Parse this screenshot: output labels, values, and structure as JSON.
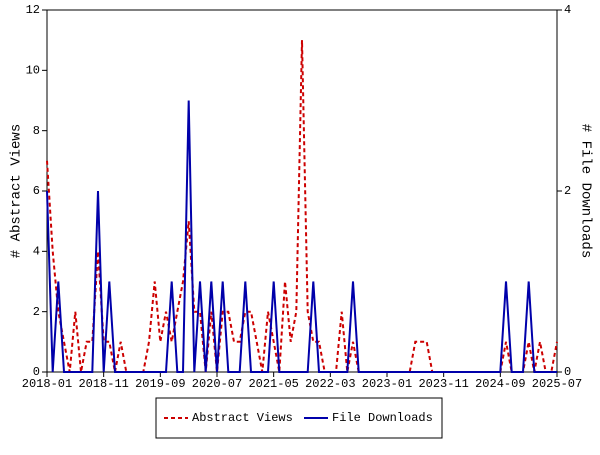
{
  "chart_data": {
    "type": "line",
    "categories": [
      "2018-01",
      null,
      null,
      null,
      null,
      null,
      null,
      null,
      null,
      null,
      "2018-11",
      null,
      null,
      null,
      null,
      null,
      null,
      null,
      null,
      null,
      "2019-09",
      null,
      null,
      null,
      null,
      null,
      null,
      null,
      null,
      null,
      "2020-07",
      null,
      null,
      null,
      null,
      null,
      null,
      null,
      null,
      null,
      "2021-05",
      null,
      null,
      null,
      null,
      null,
      null,
      null,
      null,
      null,
      "2022-03",
      null,
      null,
      null,
      null,
      null,
      null,
      null,
      null,
      null,
      "2023-01",
      null,
      null,
      null,
      null,
      null,
      null,
      null,
      null,
      null,
      "2023-11",
      null,
      null,
      null,
      null,
      null,
      null,
      null,
      null,
      null,
      "2024-09",
      null,
      null,
      null,
      null,
      null,
      null,
      null,
      null,
      null,
      "2025-07"
    ],
    "y_label": "# Abstract Views",
    "y2_label": "# File Downloads",
    "ylim": [
      0,
      12
    ],
    "yticks": [
      0,
      2,
      4,
      6,
      8,
      10,
      12
    ],
    "y2lim": [
      0,
      4
    ],
    "y2ticks": [
      0,
      2,
      4
    ],
    "series": [
      {
        "name": "Abstract Views",
        "color": "#cc0000",
        "dashed": true,
        "values": [
          7,
          4,
          2,
          1,
          0,
          2,
          0,
          1,
          1,
          4,
          1,
          1,
          0,
          1,
          0,
          0,
          0,
          0,
          1,
          3,
          1,
          2,
          1,
          2,
          3,
          5,
          2,
          2,
          0,
          2,
          0,
          2,
          2,
          1,
          1,
          2,
          2,
          1,
          0,
          2,
          1,
          0,
          3,
          1,
          2,
          11,
          2,
          1,
          1,
          0,
          0,
          0,
          2,
          0,
          1,
          0,
          0,
          0,
          0,
          0,
          0,
          0,
          0,
          0,
          0,
          1,
          1,
          1,
          0,
          0,
          0,
          0,
          0,
          0,
          0,
          0,
          0,
          0,
          0,
          0,
          0,
          1,
          0,
          0,
          0,
          1,
          0,
          1,
          0,
          0,
          1
        ]
      },
      {
        "name": "File Downloads",
        "color": "#0000aa",
        "axis": "y2",
        "values": [
          2,
          0,
          1,
          0,
          0,
          0,
          0,
          0,
          0,
          2,
          0,
          1,
          0,
          0,
          0,
          0,
          0,
          0,
          0,
          0,
          0,
          0,
          1,
          0,
          0,
          3,
          0,
          1,
          0,
          1,
          0,
          1,
          0,
          0,
          0,
          1,
          0,
          0,
          0,
          0,
          1,
          0,
          0,
          0,
          0,
          0,
          0,
          1,
          0,
          0,
          0,
          0,
          0,
          0,
          1,
          0,
          0,
          0,
          0,
          0,
          0,
          0,
          0,
          0,
          0,
          0,
          0,
          0,
          0,
          0,
          0,
          0,
          0,
          0,
          0,
          0,
          0,
          0,
          0,
          0,
          0,
          1,
          0,
          0,
          0,
          1,
          0,
          0,
          0,
          0,
          0
        ]
      }
    ]
  }
}
